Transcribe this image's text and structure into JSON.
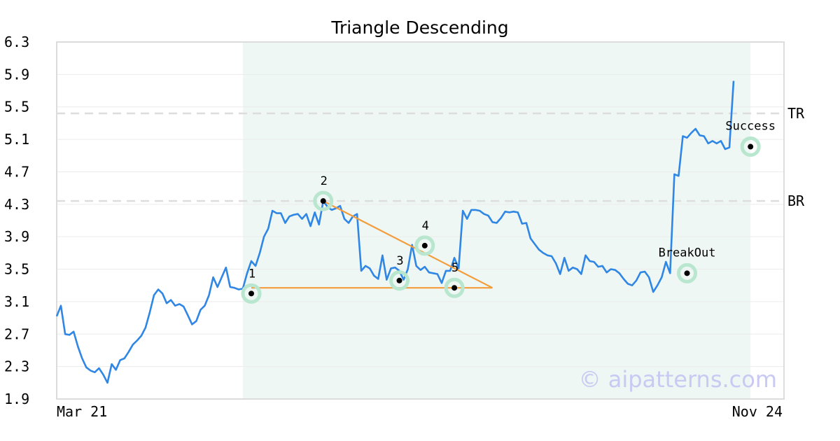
{
  "chart_data": {
    "type": "line",
    "title": "Triangle Descending",
    "xlabel": "",
    "ylabel": "",
    "ylim": [
      1.9,
      6.3
    ],
    "yticks": [
      "6.3",
      "5.9",
      "5.5",
      "5.1",
      "4.7",
      "4.3",
      "3.9",
      "3.5",
      "3.1",
      "2.7",
      "2.3",
      "1.9"
    ],
    "xtick_labels": [
      "Mar 21",
      "Nov 24"
    ],
    "grid": true,
    "series": [
      {
        "color": "#2f86e4",
        "values": [
          2.92,
          3.05,
          2.7,
          2.69,
          2.73,
          2.55,
          2.4,
          2.29,
          2.25,
          2.23,
          2.28,
          2.2,
          2.1,
          2.33,
          2.26,
          2.38,
          2.4,
          2.48,
          2.57,
          2.62,
          2.68,
          2.78,
          2.97,
          3.18,
          3.25,
          3.2,
          3.08,
          3.12,
          3.05,
          3.07,
          3.04,
          2.93,
          2.82,
          2.86,
          3.0,
          3.05,
          3.18,
          3.4,
          3.28,
          3.4,
          3.52,
          3.28,
          3.27,
          3.25,
          3.26,
          3.45,
          3.6,
          3.54,
          3.7,
          3.9,
          4.0,
          4.22,
          4.19,
          4.19,
          4.07,
          4.15,
          4.17,
          4.18,
          4.12,
          4.18,
          4.03,
          4.2,
          4.05,
          4.34,
          4.27,
          4.23,
          4.25,
          4.28,
          4.12,
          4.07,
          4.15,
          4.18,
          3.48,
          3.54,
          3.51,
          3.42,
          3.38,
          3.67,
          3.37,
          3.51,
          3.52,
          3.48,
          3.37,
          3.5,
          3.8,
          3.54,
          3.49,
          3.53,
          3.46,
          3.45,
          3.44,
          3.33,
          3.48,
          3.48,
          3.64,
          3.51,
          4.22,
          4.12,
          4.23,
          4.23,
          4.22,
          4.18,
          4.16,
          4.08,
          4.07,
          4.13,
          4.21,
          4.2,
          4.21,
          4.2,
          4.06,
          4.07,
          3.88,
          3.81,
          3.74,
          3.7,
          3.67,
          3.66,
          3.57,
          3.44,
          3.64,
          3.48,
          3.52,
          3.5,
          3.44,
          3.67,
          3.6,
          3.59,
          3.53,
          3.54,
          3.46,
          3.5,
          3.49,
          3.45,
          3.38,
          3.32,
          3.3,
          3.36,
          3.46,
          3.47,
          3.4,
          3.22,
          3.3,
          3.4,
          3.59,
          3.45,
          4.67,
          4.65,
          5.14,
          5.12,
          5.18,
          5.23,
          5.15,
          5.14,
          5.05,
          5.08,
          5.05,
          5.08,
          4.98,
          5.0,
          5.82
        ]
      },
      {
        "name": "",
        "color": "#f39c3c",
        "points": [
          [
            46,
            3.27
          ],
          [
            103,
            3.27
          ]
        ]
      },
      {
        "name": "",
        "color": "#f39c3c",
        "points": [
          [
            63,
            4.34
          ],
          [
            103,
            3.27
          ]
        ]
      }
    ],
    "shaded_region": {
      "x_start": 44,
      "x_end": 164,
      "color": "#eef7f3"
    },
    "reference_lines": [
      {
        "label": "TR",
        "value": 5.42
      },
      {
        "label": "BR",
        "value": 4.34
      }
    ],
    "key_points": [
      {
        "label": "1",
        "x": 46,
        "y": 3.2
      },
      {
        "label": "2",
        "x": 63,
        "y": 4.34
      },
      {
        "label": "3",
        "x": 81,
        "y": 3.36
      },
      {
        "label": "4",
        "x": 87,
        "y": 3.79
      },
      {
        "label": "5",
        "x": 94,
        "y": 3.27
      }
    ],
    "annotations": [
      {
        "label": "BreakOut",
        "x": 149,
        "y": 3.45
      },
      {
        "label": "Success",
        "x": 164,
        "y": 5.01
      }
    ]
  },
  "watermark": "© aipatterns.com"
}
